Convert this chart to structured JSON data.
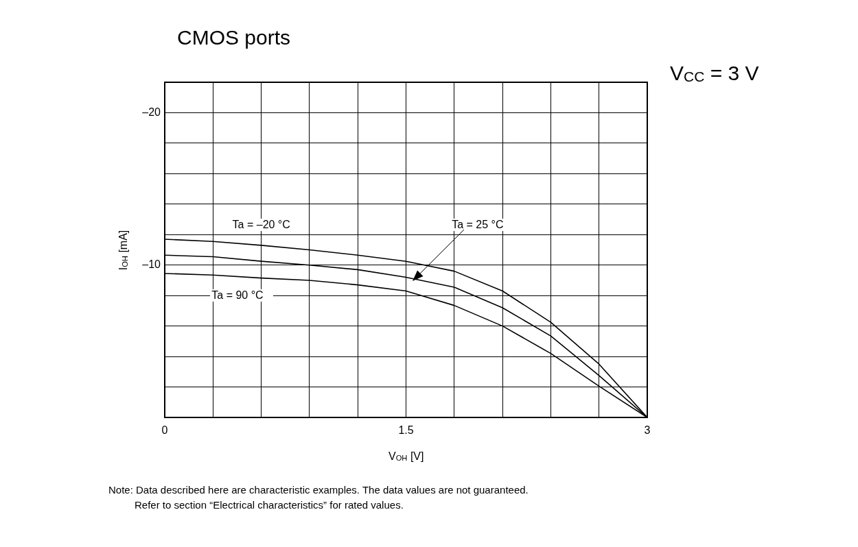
{
  "chart_data": {
    "type": "line",
    "title": "CMOS ports",
    "xlabel": "V$_{OH}$ [V]",
    "ylabel": "I$_{OH}$ [mA]",
    "annotations": [
      "V$_{CC}$ = 3 V",
      "Note: Data described here are characteristic examples. The data values are not guaranteed.\nRefer to section “Electrical characteristics” for rated values."
    ],
    "x": [
      0,
      0.3,
      0.6,
      0.9,
      1.2,
      1.5,
      1.8,
      2.1,
      2.4,
      2.7,
      3
    ],
    "series": [
      {
        "name": "Ta = –20 °C",
        "color": "#000000",
        "values": [
          -11.7,
          -11.55,
          -11.3,
          -11.0,
          -10.65,
          -10.25,
          -9.6,
          -8.3,
          -6.25,
          -3.5,
          0
        ]
      },
      {
        "name": "Ta = 25 °C",
        "color": "#000000",
        "values": [
          -10.65,
          -10.55,
          -10.25,
          -10.0,
          -9.7,
          -9.2,
          -8.55,
          -7.2,
          -5.35,
          -2.75,
          0
        ]
      },
      {
        "name": "Ta = 90 °C",
        "color": "#000000",
        "values": [
          -9.45,
          -9.35,
          -9.15,
          -9.0,
          -8.7,
          -8.3,
          -7.35,
          -6.0,
          -4.2,
          -2.05,
          0
        ]
      }
    ],
    "xlim": [
      0,
      3
    ],
    "xticks": [
      0,
      {
        "value": 0.3,
        "label": null
      },
      {
        "value": 0.6,
        "label": null
      },
      {
        "value": 0.9,
        "label": null
      },
      {
        "value": 1.2,
        "label": null
      },
      1.5,
      {
        "value": 1.8,
        "label": null
      },
      {
        "value": 2.1,
        "label": null
      },
      {
        "value": 2.4,
        "label": null
      },
      {
        "value": 2.7,
        "label": null
      },
      3
    ],
    "ylim": [
      0,
      -22
    ],
    "yticks": [
      {
        "value": -2,
        "label": null
      },
      {
        "value": -4,
        "label": null
      },
      {
        "value": -6,
        "label": null
      },
      {
        "value": -8,
        "label": null
      },
      {
        "value": -10,
        "label": "–10"
      },
      {
        "value": -12,
        "label": null
      },
      {
        "value": -14,
        "label": null
      },
      {
        "value": -16,
        "label": null
      },
      {
        "value": -18,
        "label": null
      },
      {
        "value": -20,
        "label": "–20"
      }
    ],
    "grid": true,
    "legend": false,
    "marker": "none",
    "line_style": "solid"
  }
}
